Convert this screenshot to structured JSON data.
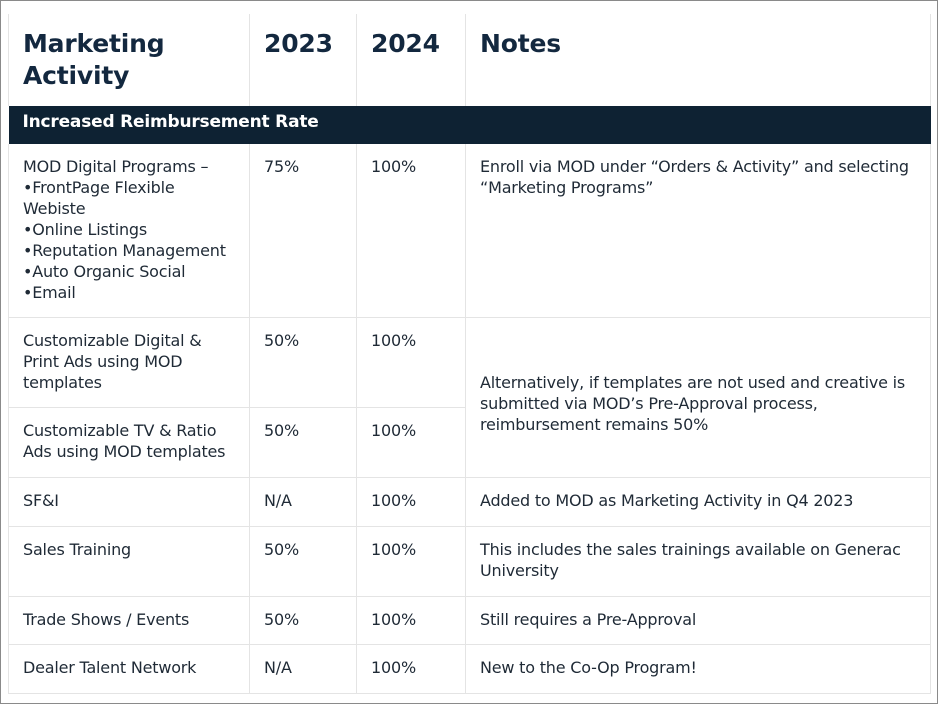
{
  "table": {
    "header": [
      "Marketing Activity",
      "2023",
      "2024",
      "Notes"
    ],
    "section": "Increased Reimbursement Rate",
    "rows": [
      {
        "activity": "MOD Digital Programs –",
        "bullets": [
          "•FrontPage Flexible Webiste",
          "•Online Listings",
          "•Reputation Management",
          "•Auto Organic Social",
          "•Email"
        ],
        "y2023": "75%",
        "y2024": "100%",
        "notes": "Enroll via MOD under “Orders & Activity” and selecting “Marketing Programs”"
      },
      {
        "activity": "Customizable Digital & Print Ads using MOD templates",
        "y2023": "50%",
        "y2024": "100%",
        "notes": "Alternatively, if templates are not used and creative is submitted via MOD’s Pre-Approval process, reimbursement remains 50%"
      },
      {
        "activity": "Customizable TV & Ratio Ads using MOD templates",
        "y2023": "50%",
        "y2024": "100%"
      },
      {
        "activity": "SF&I",
        "y2023": "N/A",
        "y2024": "100%",
        "notes": "Added to MOD as Marketing Activity  in Q4 2023"
      },
      {
        "activity": "Sales Training",
        "y2023": "50%",
        "y2024": "100%",
        "notes": "This includes the sales trainings available on Generac University"
      },
      {
        "activity": "Trade Shows / Events",
        "y2023": "50%",
        "y2024": "100%",
        "notes": "Still requires a Pre-Approval"
      },
      {
        "activity": "Dealer Talent Network",
        "y2023": "N/A",
        "y2024": "100%",
        "notes": "New to the Co-Op Program!"
      }
    ]
  }
}
